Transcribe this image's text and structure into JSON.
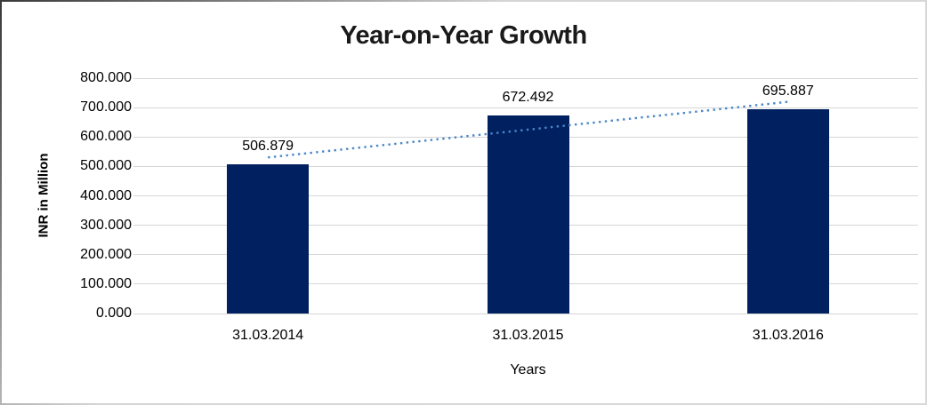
{
  "window": {
    "background": "#FFFFFF",
    "border_dark": "#3A3A3A",
    "border_light": "#D9D9D9"
  },
  "chart_data": {
    "type": "bar",
    "title": "Year-on-Year Growth",
    "categories": [
      "31.03.2014",
      "31.03.2015",
      "31.03.2016"
    ],
    "series": [
      {
        "name": "INR in Million",
        "color": "#002060",
        "values": [
          506.879,
          672.492,
          695.887
        ],
        "data_labels": [
          "506.879",
          "672.492",
          "695.887"
        ]
      }
    ],
    "xlabel": "Years",
    "ylabel": "INR in Million",
    "ylim": [
      0,
      800
    ],
    "ytick_step": 100,
    "ytick_labels": [
      "800.000",
      "700.000",
      "600.000",
      "500.000",
      "400.000",
      "300.000",
      "200.000",
      "100.000",
      "0.000"
    ],
    "grid": true,
    "gridline_color": "#D6D6D6",
    "legend": "none",
    "trendline": {
      "series": "INR in Million",
      "fit": "linear",
      "style": "dotted",
      "color": "#4A86C8"
    }
  }
}
